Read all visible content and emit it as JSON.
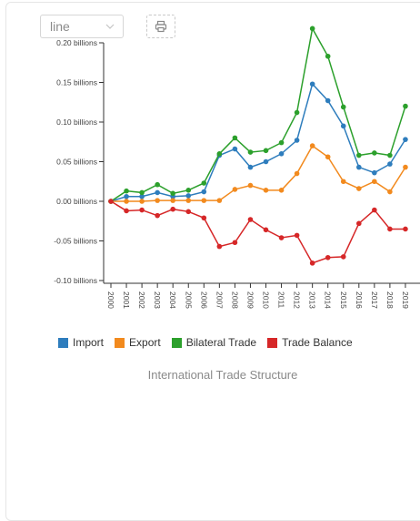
{
  "controls": {
    "chart_type_value": "line",
    "print_icon": "printer-icon",
    "dropdown_icon": "chevron-down-icon"
  },
  "caption": "International Trade Structure",
  "chart_data": {
    "type": "line",
    "title": "",
    "xlabel": "",
    "ylabel": "",
    "x": [
      "2000",
      "2001",
      "2002",
      "2003",
      "2004",
      "2005",
      "2006",
      "2007",
      "2008",
      "2009",
      "2010",
      "2011",
      "2012",
      "2013",
      "2014",
      "2015",
      "2016",
      "2017",
      "2018",
      "2019"
    ],
    "ylim": [
      -0.1,
      0.2
    ],
    "y_ticks": [
      {
        "value": 0.2,
        "label": "0.20 billions"
      },
      {
        "value": 0.15,
        "label": "0.15 billions"
      },
      {
        "value": 0.1,
        "label": "0.10 billions"
      },
      {
        "value": 0.05,
        "label": "0.05 billions"
      },
      {
        "value": 0.0,
        "label": "0.00 billions"
      },
      {
        "value": -0.05,
        "label": "-0.05 billions"
      },
      {
        "value": -0.1,
        "label": "-0.10 billions"
      }
    ],
    "legend_position": "bottom",
    "grid": false,
    "series": [
      {
        "name": "Import",
        "color": "#2e7dbd",
        "values": [
          0.0,
          0.006,
          0.006,
          0.011,
          0.006,
          0.007,
          0.012,
          0.058,
          0.066,
          0.043,
          0.05,
          0.06,
          0.077,
          0.148,
          0.127,
          0.095,
          0.043,
          0.036,
          0.047,
          0.078
        ]
      },
      {
        "name": "Export",
        "color": "#f28a1e",
        "values": [
          0.0,
          0.0,
          0.0,
          0.001,
          0.001,
          0.001,
          0.001,
          0.001,
          0.015,
          0.02,
          0.014,
          0.014,
          0.035,
          0.07,
          0.056,
          0.025,
          0.016,
          0.025,
          0.012,
          0.043
        ]
      },
      {
        "name": "Bilateral Trade",
        "color": "#2ca02c",
        "values": [
          0.0,
          0.013,
          0.011,
          0.021,
          0.01,
          0.014,
          0.023,
          0.06,
          0.08,
          0.062,
          0.064,
          0.074,
          0.112,
          0.218,
          0.183,
          0.119,
          0.058,
          0.061,
          0.058,
          0.12
        ]
      },
      {
        "name": "Trade Balance",
        "color": "#d62728",
        "values": [
          0.0,
          -0.012,
          -0.011,
          -0.018,
          -0.01,
          -0.013,
          -0.021,
          -0.057,
          -0.052,
          -0.023,
          -0.036,
          -0.046,
          -0.043,
          -0.078,
          -0.071,
          -0.07,
          -0.028,
          -0.011,
          -0.035,
          -0.035
        ]
      }
    ]
  }
}
